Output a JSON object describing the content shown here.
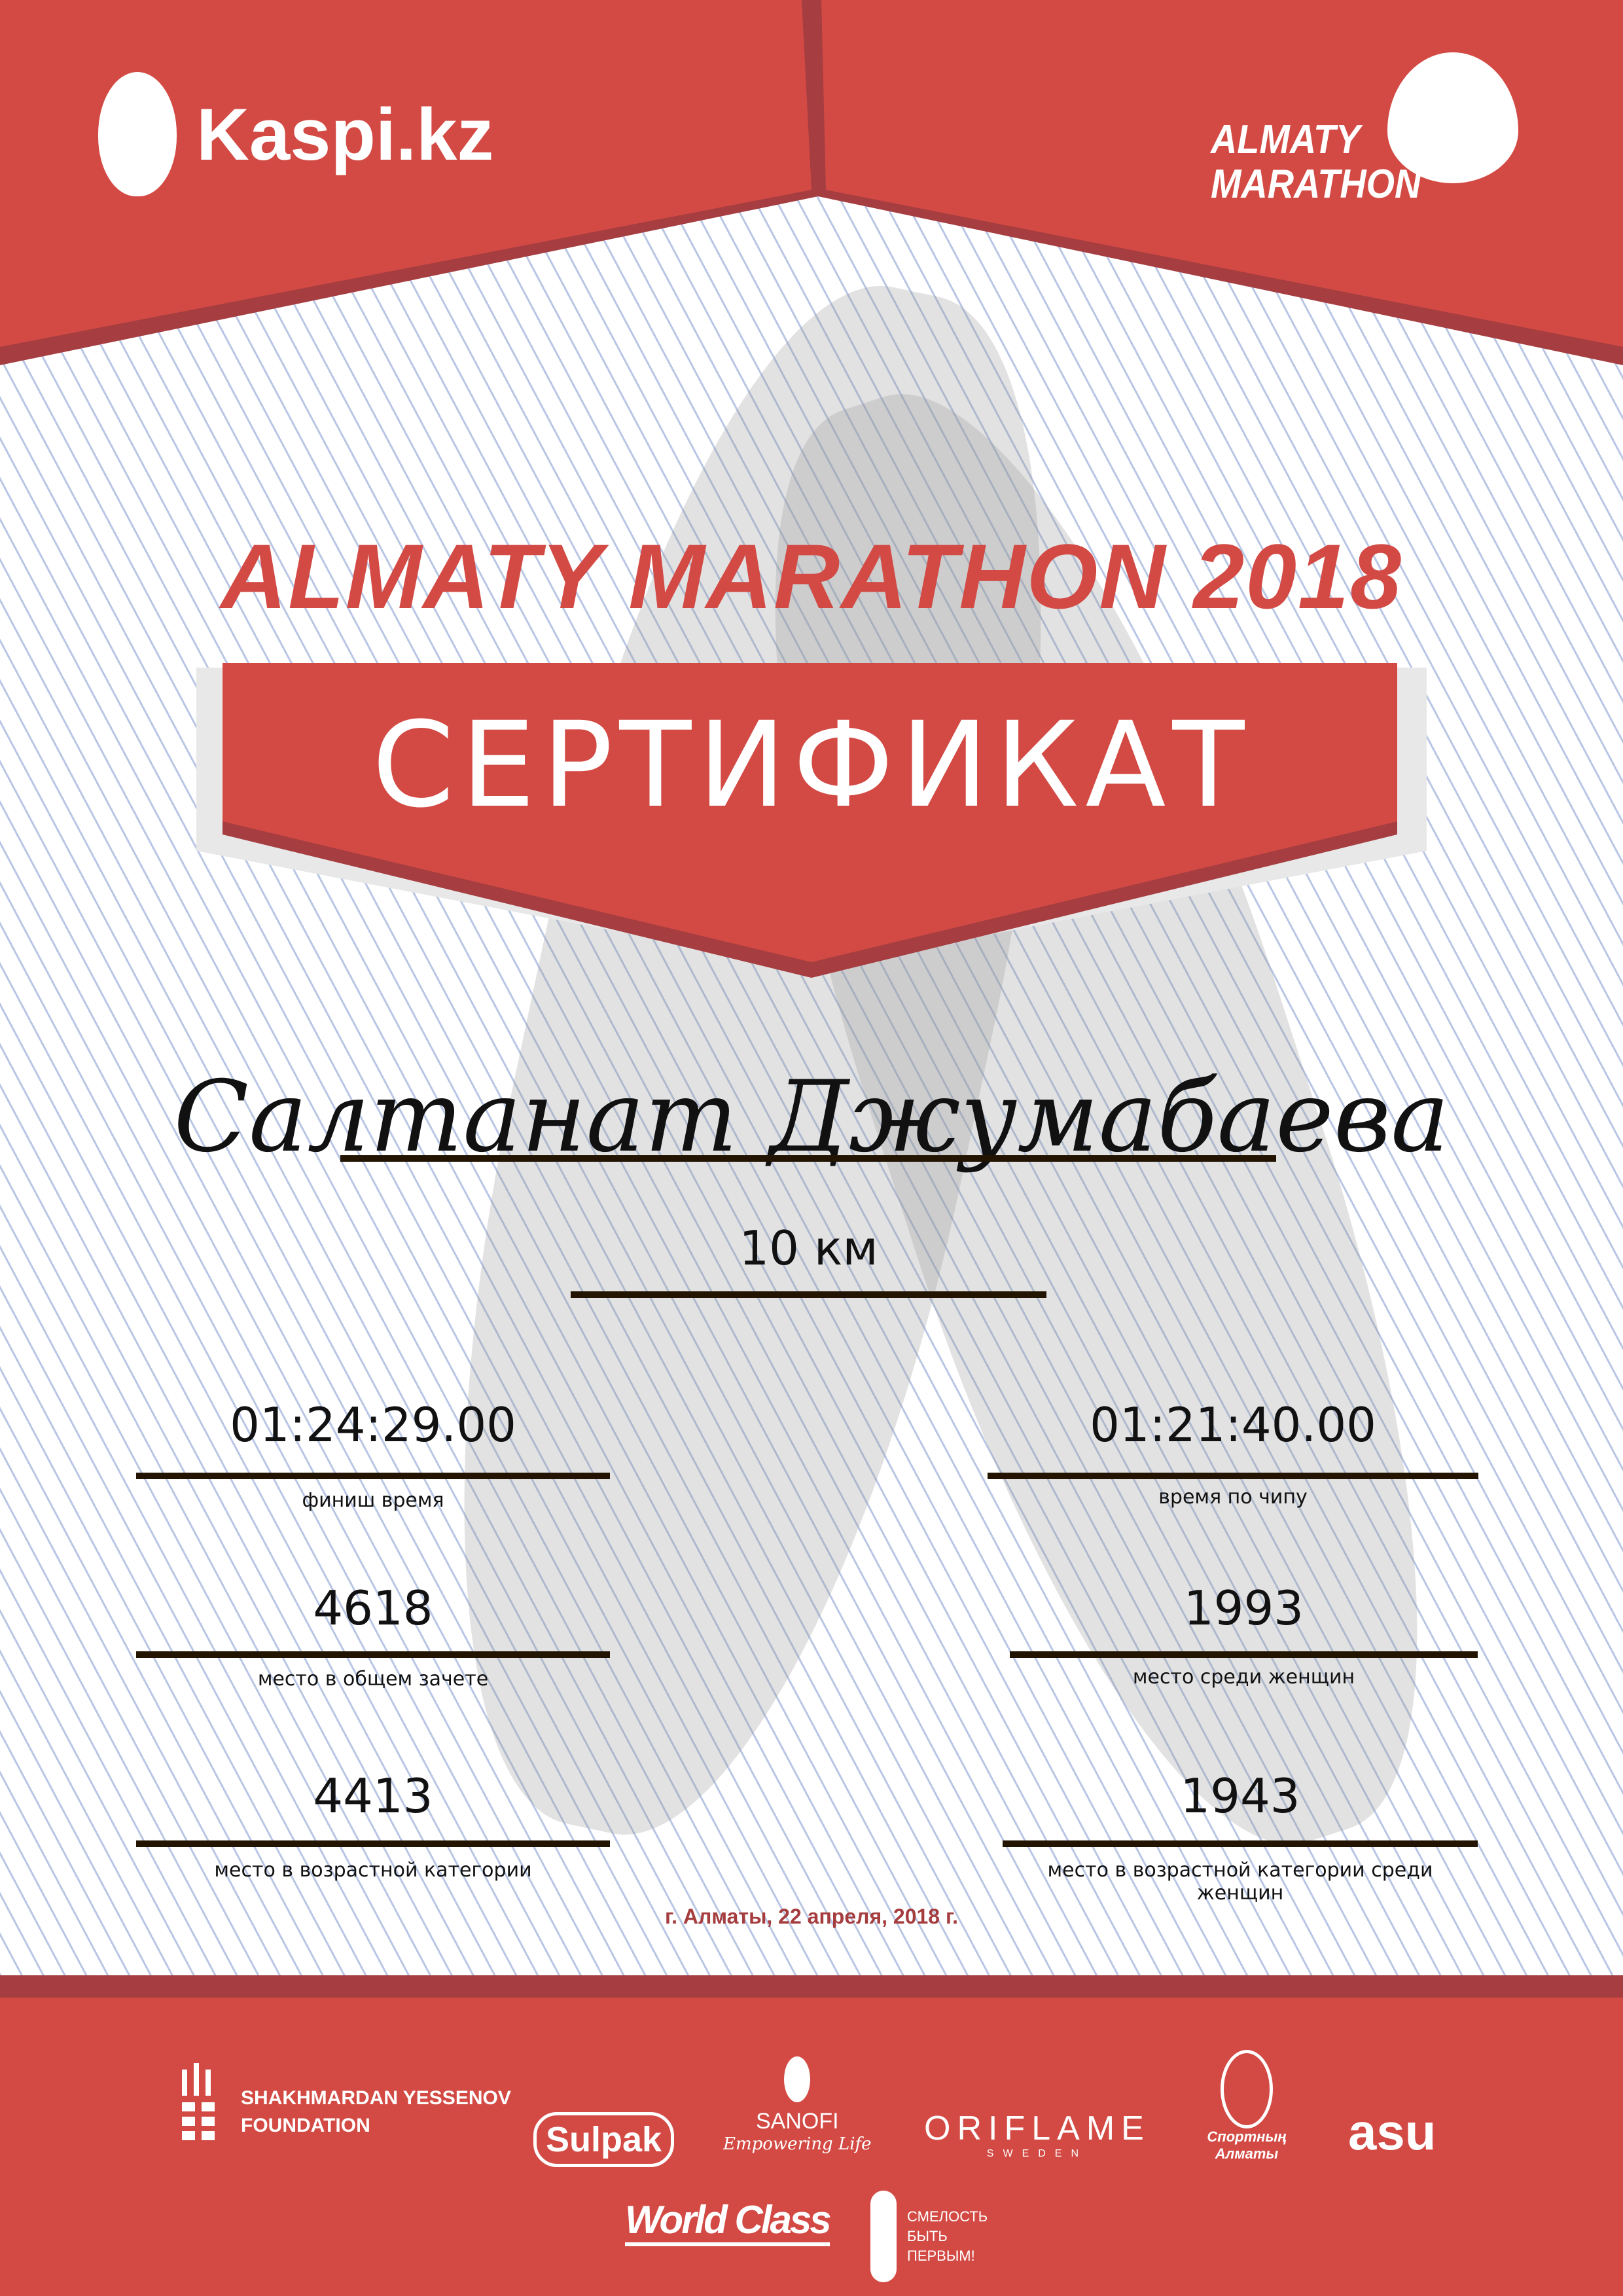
{
  "header": {
    "left_logo": "Kaspi.kz",
    "right_logo": "ALMATY MARATHON"
  },
  "title": "ALMATY MARATHON 2018",
  "banner": "СЕРТИФИКАТ",
  "participant": {
    "name": "Салтанат Джумабаева",
    "distance": "10 км"
  },
  "results": [
    {
      "value": "01:24:29.00",
      "label": "финиш время"
    },
    {
      "value": "01:21:40.00",
      "label": "время по чипу"
    },
    {
      "value": "4618",
      "label": "место в общем зачете"
    },
    {
      "value": "1993",
      "label": "место среди женщин"
    },
    {
      "value": "4413",
      "label": "место в возрастной категории"
    },
    {
      "value": "1943",
      "label": "место в возрастной категории среди женщин"
    }
  ],
  "date": "г. Алматы, 22 апреля, 2018 г.",
  "sponsors": {
    "yessenov": [
      "SHAKHMARDAN YESSENOV",
      "FOUNDATION"
    ],
    "sulpak": "Sulpak",
    "sanofi": [
      "SANOFI",
      "Empowering Life"
    ],
    "oriflame": [
      "ORIFLAME",
      "SWEDEN"
    ],
    "sport_almaty": "Спортның Алматы",
    "asu": "asu",
    "worldclass": "World Class",
    "smelost": [
      "СМЕЛОСТЬ",
      "БЫТЬ",
      "ПЕРВЫМ!"
    ]
  },
  "colors": {
    "primary": "#d34a44",
    "dark": "#a63d40",
    "line": "#221400"
  }
}
